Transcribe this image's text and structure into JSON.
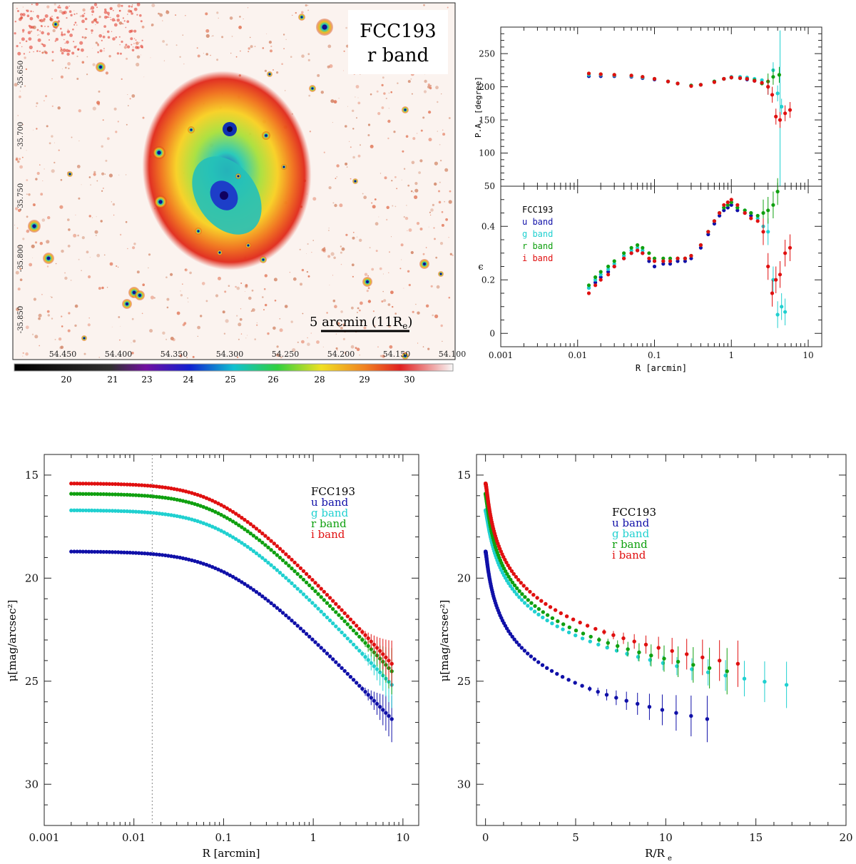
{
  "image_panel": {
    "galaxy": "FCC193",
    "band": "r band",
    "scale_bar_label": "5 arcmin (11R",
    "scale_bar_sub": "e",
    "scale_bar_close": ")",
    "ra_ticks": [
      "54.450",
      "54.400",
      "54.350",
      "54.300",
      "54.250",
      "54.200",
      "54.150",
      "54.100"
    ],
    "dec_ticks": [
      "-35.650",
      "-35.700",
      "-35.750",
      "-35.800",
      "-35.850"
    ],
    "colorbar_ticks": [
      "20",
      "21",
      "23",
      "24",
      "25",
      "26",
      "28",
      "29",
      "30"
    ],
    "colors": {
      "core": "#1a0fa0",
      "mid": "#19c2b4",
      "halo": "#f6c61a",
      "outer": "#e2301b"
    }
  },
  "chart_data": [
    {
      "id": "pa",
      "type": "scatter",
      "xscale": "log",
      "xlim": [
        0.001,
        15
      ],
      "ylim": [
        50,
        290
      ],
      "ylabel": "P.A. [degree]",
      "yticks": [
        "50",
        "100",
        "150",
        "200",
        "250"
      ],
      "series": [
        {
          "name": "u band",
          "color": "#1010a8",
          "x": [
            0.014,
            0.02,
            0.03,
            0.05,
            0.07,
            0.1,
            0.15,
            0.2,
            0.3,
            0.4,
            0.6,
            0.8,
            1.0,
            1.3,
            1.6,
            2.0
          ],
          "y": [
            216,
            216,
            216,
            215,
            213,
            211,
            208,
            205,
            202,
            203,
            208,
            212,
            214,
            213,
            211,
            209
          ]
        },
        {
          "name": "g band",
          "color": "#20d0d0",
          "x": [
            0.014,
            0.02,
            0.03,
            0.05,
            0.07,
            0.1,
            0.15,
            0.2,
            0.3,
            0.4,
            0.6,
            0.8,
            1.0,
            1.3,
            1.6,
            2.0,
            2.5,
            3.0,
            3.5,
            4.0,
            4.5
          ],
          "y": [
            218,
            218,
            217,
            216,
            214,
            212,
            208,
            205,
            202,
            203,
            208,
            212,
            215,
            215,
            214,
            212,
            210,
            200,
            225,
            190,
            170
          ]
        },
        {
          "name": "r band",
          "color": "#10a010",
          "x": [
            0.014,
            0.02,
            0.03,
            0.05,
            0.07,
            0.1,
            0.15,
            0.2,
            0.3,
            0.4,
            0.6,
            0.8,
            1.0,
            1.3,
            1.6,
            2.0,
            2.5,
            3.0,
            3.5,
            4.2
          ],
          "y": [
            220,
            219,
            218,
            217,
            215,
            212,
            208,
            205,
            202,
            203,
            208,
            212,
            214,
            213,
            212,
            210,
            205,
            208,
            215,
            218
          ]
        },
        {
          "name": "i band",
          "color": "#e01010",
          "x": [
            0.014,
            0.02,
            0.03,
            0.05,
            0.07,
            0.1,
            0.15,
            0.2,
            0.3,
            0.4,
            0.6,
            0.8,
            1.0,
            1.3,
            1.6,
            2.0,
            2.5,
            3.0,
            3.4,
            3.8,
            4.3,
            5.0,
            5.8
          ],
          "y": [
            220,
            219,
            218,
            217,
            215,
            212,
            208,
            205,
            201,
            203,
            207,
            212,
            214,
            213,
            212,
            209,
            206,
            200,
            188,
            155,
            150,
            160,
            165
          ]
        }
      ]
    },
    {
      "id": "ellipticity",
      "type": "scatter",
      "xscale": "log",
      "xlim": [
        0.001,
        15
      ],
      "ylim": [
        -0.05,
        0.55
      ],
      "xlabel": "R [arcmin]",
      "ylabel": "ϵ",
      "xticks": [
        "0.001",
        "0.01",
        "0.1",
        "1",
        "10"
      ],
      "yticks": [
        "0",
        "0.2",
        "0.4"
      ],
      "legend_title": "FCC193",
      "series": [
        {
          "name": "u band",
          "color": "#1010a8",
          "x": [
            0.014,
            0.017,
            0.02,
            0.025,
            0.03,
            0.04,
            0.05,
            0.06,
            0.07,
            0.085,
            0.1,
            0.13,
            0.16,
            0.2,
            0.25,
            0.3,
            0.4,
            0.5,
            0.6,
            0.7,
            0.8,
            0.9,
            1.0,
            1.2,
            1.5,
            1.8
          ],
          "y": [
            0.17,
            0.19,
            0.21,
            0.23,
            0.25,
            0.28,
            0.3,
            0.31,
            0.3,
            0.27,
            0.25,
            0.26,
            0.26,
            0.27,
            0.27,
            0.28,
            0.32,
            0.37,
            0.41,
            0.44,
            0.46,
            0.47,
            0.48,
            0.46,
            0.45,
            0.44
          ]
        },
        {
          "name": "g band",
          "color": "#20d0d0",
          "x": [
            0.014,
            0.017,
            0.02,
            0.025,
            0.03,
            0.04,
            0.05,
            0.06,
            0.07,
            0.085,
            0.1,
            0.13,
            0.16,
            0.2,
            0.25,
            0.3,
            0.4,
            0.5,
            0.6,
            0.7,
            0.8,
            0.9,
            1.0,
            1.2,
            1.5,
            1.8,
            2.2,
            2.6,
            3.0,
            3.5,
            4.0,
            4.5,
            5.0
          ],
          "y": [
            0.17,
            0.2,
            0.22,
            0.24,
            0.26,
            0.29,
            0.31,
            0.32,
            0.31,
            0.28,
            0.27,
            0.27,
            0.27,
            0.28,
            0.28,
            0.29,
            0.33,
            0.38,
            0.42,
            0.45,
            0.47,
            0.48,
            0.49,
            0.47,
            0.46,
            0.45,
            0.43,
            0.4,
            0.38,
            0.2,
            0.07,
            0.1,
            0.08
          ]
        },
        {
          "name": "r band",
          "color": "#10a010",
          "x": [
            0.014,
            0.017,
            0.02,
            0.025,
            0.03,
            0.04,
            0.05,
            0.06,
            0.07,
            0.085,
            0.1,
            0.13,
            0.16,
            0.2,
            0.25,
            0.3,
            0.4,
            0.5,
            0.6,
            0.7,
            0.8,
            0.9,
            1.0,
            1.2,
            1.5,
            1.8,
            2.2,
            2.6,
            3.0,
            3.5,
            4.0
          ],
          "y": [
            0.18,
            0.21,
            0.23,
            0.25,
            0.27,
            0.3,
            0.32,
            0.33,
            0.32,
            0.3,
            0.28,
            0.28,
            0.28,
            0.28,
            0.28,
            0.29,
            0.33,
            0.38,
            0.42,
            0.45,
            0.47,
            0.48,
            0.49,
            0.47,
            0.46,
            0.45,
            0.44,
            0.45,
            0.46,
            0.48,
            0.53
          ]
        },
        {
          "name": "i band",
          "color": "#e01010",
          "x": [
            0.014,
            0.017,
            0.02,
            0.025,
            0.03,
            0.04,
            0.05,
            0.06,
            0.07,
            0.085,
            0.1,
            0.13,
            0.16,
            0.2,
            0.25,
            0.3,
            0.4,
            0.5,
            0.6,
            0.7,
            0.8,
            0.9,
            1.0,
            1.2,
            1.5,
            1.8,
            2.2,
            2.6,
            3.0,
            3.4,
            3.8,
            4.3,
            5.0,
            5.8
          ],
          "y": [
            0.15,
            0.18,
            0.2,
            0.22,
            0.25,
            0.28,
            0.3,
            0.31,
            0.3,
            0.28,
            0.27,
            0.27,
            0.27,
            0.28,
            0.28,
            0.29,
            0.33,
            0.38,
            0.42,
            0.45,
            0.48,
            0.49,
            0.5,
            0.48,
            0.45,
            0.43,
            0.42,
            0.38,
            0.25,
            0.15,
            0.2,
            0.22,
            0.3,
            0.32
          ]
        }
      ]
    },
    {
      "id": "profile_log",
      "type": "scatter",
      "xscale": "log",
      "xlim": [
        0.001,
        15
      ],
      "ylim": [
        32,
        14
      ],
      "xlabel": "R [arcmin]",
      "ylabel": "μ[mag/arcsec²]",
      "xticks": [
        "0.001",
        "0.01",
        "0.1",
        "1",
        "10"
      ],
      "yticks": [
        "15",
        "20",
        "25",
        "30"
      ],
      "vline": 0.016,
      "legend_title": "FCC193",
      "series": [
        {
          "name": "u band",
          "color": "#1010a8",
          "mu0": 18.7,
          "r0": 0.013,
          "slope": 1.35,
          "mode": "log"
        },
        {
          "name": "g band",
          "color": "#20d0d0",
          "mu0": 16.7,
          "r0": 0.013,
          "slope": 1.4,
          "mode": "log"
        },
        {
          "name": "r band",
          "color": "#10a010",
          "mu0": 15.9,
          "r0": 0.013,
          "slope": 1.42,
          "mode": "log"
        },
        {
          "name": "i band",
          "color": "#e01010",
          "mu0": 15.4,
          "r0": 0.013,
          "slope": 1.44,
          "mode": "log"
        }
      ]
    },
    {
      "id": "profile_lin",
      "type": "scatter",
      "xscale": "linear",
      "xlim": [
        -0.5,
        20
      ],
      "ylim": [
        32,
        14
      ],
      "xlabel": "R/R",
      "xlabel_sub": "e",
      "ylabel": "μ[mag/arcsec²]",
      "xticks": [
        "0",
        "5",
        "10",
        "15",
        "20"
      ],
      "yticks": [
        "15",
        "20",
        "25",
        "30"
      ],
      "legend_title": "FCC193",
      "series": [
        {
          "name": "u band",
          "color": "#1010a8",
          "mu0": 18.7,
          "rmax": 12.3
        },
        {
          "name": "g band",
          "color": "#20d0d0",
          "mu0": 16.7,
          "rmax": 16.7
        },
        {
          "name": "r band",
          "color": "#10a010",
          "mu0": 15.9,
          "rmax": 13.4
        },
        {
          "name": "i band",
          "color": "#e01010",
          "mu0": 15.4,
          "rmax": 14.0
        }
      ]
    }
  ]
}
